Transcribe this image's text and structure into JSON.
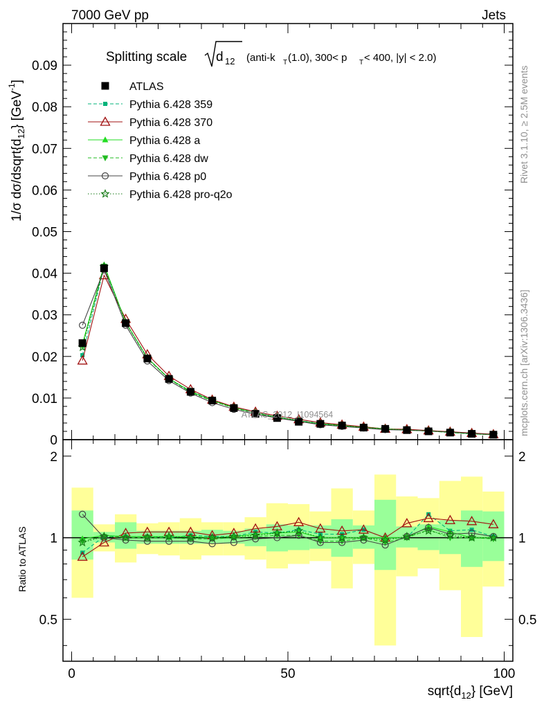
{
  "header": {
    "left": "7000 GeV pp",
    "right": "Jets"
  },
  "side_labels": {
    "rivet": "Rivet 3.1.10, ≥ 2.5M events",
    "mcplots": "mcplots.cern.ch [arXiv:1306.3436]"
  },
  "watermark": "ATLAS_2012_I1094564",
  "colors": {
    "ATLAS": "#000000",
    "p359": "#00b37a",
    "p370": "#a01010",
    "pa": "#22dd22",
    "pdw": "#22bb22",
    "pp0": "#444444",
    "pq2o": "#117711",
    "band_inner": "#99ff99",
    "band_outer": "#ffff99"
  },
  "chart_data": [
    {
      "type": "line",
      "title": "Splitting scale √d₁₂ (anti-kₜ(1.0), 300< pₜ < 400, |y| < 2.0)",
      "title_main": "Splitting scale",
      "title_sub": "(anti-k",
      "title_sub_T": "T",
      "title_sub_mid": "(1.0), 300< p",
      "title_sub_end": " < 400, |y| < 2.0)",
      "ylabel": "1/σ dσ/dsqrt{d12} [GeV⁻¹]",
      "ylabel_main": "1/σ dσ/dsqrt{d",
      "ylabel_sub": "12",
      "ylabel_end": "} [GeV",
      "ylabel_sup": "-1",
      "ylabel_close": "]",
      "xlim": [
        -2,
        102
      ],
      "ylim": [
        0,
        0.1
      ],
      "yticks": [
        "0",
        "0.01",
        "0.02",
        "0.03",
        "0.04",
        "0.05",
        "0.06",
        "0.07",
        "0.08",
        "0.09"
      ],
      "yticks_values": [
        0,
        0.01,
        0.02,
        0.03,
        0.04,
        0.05,
        0.06,
        0.07,
        0.08,
        0.09
      ],
      "x": [
        2.5,
        7.5,
        12.5,
        17.5,
        22.5,
        27.5,
        32.5,
        37.5,
        42.5,
        47.5,
        52.5,
        57.5,
        62.5,
        67.5,
        72.5,
        77.5,
        82.5,
        87.5,
        92.5,
        97.5
      ],
      "legend_placement": "top-left",
      "series": [
        {
          "name": "ATLAS",
          "key": "ATLAS",
          "marker": "square",
          "style": "none",
          "values": [
            0.0232,
            0.0412,
            0.028,
            0.0195,
            0.0146,
            0.0115,
            0.0094,
            0.0076,
            0.0062,
            0.0052,
            0.0043,
            0.0038,
            0.0034,
            0.0029,
            0.0026,
            0.0023,
            0.002,
            0.0017,
            0.0014,
            0.0012
          ]
        },
        {
          "name": "Pythia 6.428 359",
          "key": "p359",
          "marker": "smallsquare",
          "style": "dashed",
          "values": [
            0.0203,
            0.0415,
            0.0282,
            0.0197,
            0.0146,
            0.0117,
            0.0095,
            0.0077,
            0.0065,
            0.0054,
            0.0046,
            0.0039,
            0.0035,
            0.0031,
            0.0026,
            0.0023,
            0.0022,
            0.0018,
            0.0015,
            0.0012
          ]
        },
        {
          "name": "Pythia 6.428 370",
          "key": "p370",
          "marker": "opentriangle",
          "style": "solid",
          "values": [
            0.019,
            0.0395,
            0.029,
            0.0205,
            0.0153,
            0.0121,
            0.0096,
            0.0079,
            0.0067,
            0.0057,
            0.0049,
            0.0041,
            0.0036,
            0.0031,
            0.0026,
            0.0025,
            0.0022,
            0.0019,
            0.0016,
            0.0013
          ]
        },
        {
          "name": "Pythia 6.428 a",
          "key": "pa",
          "marker": "filledtriangle",
          "style": "solid",
          "values": [
            0.023,
            0.042,
            0.0282,
            0.0196,
            0.0147,
            0.0116,
            0.0094,
            0.0077,
            0.0064,
            0.0054,
            0.0045,
            0.0038,
            0.0034,
            0.0029,
            0.0026,
            0.0023,
            0.0021,
            0.0018,
            0.0014,
            0.0012
          ]
        },
        {
          "name": "Pythia 6.428 dw",
          "key": "pdw",
          "marker": "downtriangle",
          "style": "dashed",
          "values": [
            0.0225,
            0.0417,
            0.0281,
            0.0195,
            0.0146,
            0.0114,
            0.0093,
            0.0076,
            0.0063,
            0.0053,
            0.0044,
            0.0037,
            0.0033,
            0.0029,
            0.0025,
            0.0023,
            0.0021,
            0.0017,
            0.0014,
            0.0012
          ]
        },
        {
          "name": "Pythia 6.428 p0",
          "key": "pp0",
          "marker": "opencircle",
          "style": "solid",
          "values": [
            0.0275,
            0.0408,
            0.0275,
            0.0189,
            0.0142,
            0.0112,
            0.0089,
            0.0073,
            0.0061,
            0.0052,
            0.0044,
            0.0036,
            0.0032,
            0.0028,
            0.0024,
            0.0023,
            0.0021,
            0.0018,
            0.0015,
            0.0012
          ]
        },
        {
          "name": "Pythia 6.428 pro-q2o",
          "key": "pq2o",
          "marker": "star",
          "style": "dotted",
          "values": [
            0.0222,
            0.0416,
            0.0281,
            0.0196,
            0.0147,
            0.0115,
            0.0094,
            0.0077,
            0.0064,
            0.0054,
            0.0046,
            0.0038,
            0.0034,
            0.0029,
            0.0026,
            0.0023,
            0.0021,
            0.0018,
            0.0014,
            0.0012
          ]
        }
      ]
    },
    {
      "type": "line",
      "title": "",
      "ylabel": "Ratio to ATLAS",
      "xlabel": "sqrt{d12} [GeV]",
      "xlabel_main": "sqrt{d",
      "xlabel_sub": "12",
      "xlabel_end": "} [GeV]",
      "xlim": [
        -2,
        102
      ],
      "ylim": [
        0.35,
        2.3
      ],
      "xticks": [
        "0",
        "50",
        "100"
      ],
      "xticks_values": [
        0,
        50,
        100
      ],
      "yticks": [
        "0.5",
        "1",
        "2"
      ],
      "yticks_values": [
        0.5,
        1,
        2
      ],
      "x": [
        2.5,
        7.5,
        12.5,
        17.5,
        22.5,
        27.5,
        32.5,
        37.5,
        42.5,
        47.5,
        52.5,
        57.5,
        62.5,
        67.5,
        72.5,
        77.5,
        82.5,
        87.5,
        92.5,
        97.5
      ],
      "bands": {
        "inner_low": [
          0.83,
          0.96,
          0.91,
          0.95,
          0.95,
          0.95,
          0.95,
          0.95,
          0.93,
          0.89,
          0.9,
          0.91,
          0.85,
          0.91,
          0.76,
          0.92,
          0.9,
          0.87,
          0.78,
          0.82
        ],
        "inner_high": [
          1.26,
          1.05,
          1.14,
          1.06,
          1.06,
          1.06,
          1.07,
          1.06,
          1.08,
          1.12,
          1.11,
          1.11,
          1.17,
          1.11,
          1.38,
          1.1,
          1.12,
          1.16,
          1.26,
          1.25
        ],
        "outer_low": [
          0.6,
          0.89,
          0.81,
          0.87,
          0.86,
          0.83,
          0.86,
          0.86,
          0.83,
          0.77,
          0.8,
          0.82,
          0.65,
          0.8,
          0.4,
          0.72,
          0.77,
          0.64,
          0.43,
          0.66
        ],
        "outer_high": [
          1.53,
          1.12,
          1.22,
          1.13,
          1.14,
          1.18,
          1.14,
          1.14,
          1.19,
          1.34,
          1.33,
          1.25,
          1.52,
          1.26,
          1.71,
          1.42,
          1.4,
          1.62,
          1.68,
          1.48
        ]
      },
      "series": [
        {
          "name": "Pythia 6.428 359",
          "key": "p359",
          "marker": "smallsquare",
          "style": "dashed",
          "values": [
            0.88,
            1.01,
            1.01,
            1.01,
            1.0,
            1.02,
            1.01,
            1.01,
            1.05,
            1.04,
            1.07,
            1.03,
            1.03,
            1.07,
            1.0,
            1.0,
            1.22,
            1.06,
            1.07,
            1.01
          ]
        },
        {
          "name": "Pythia 6.428 370",
          "key": "p370",
          "marker": "opentriangle",
          "style": "solid",
          "values": [
            0.85,
            0.96,
            1.04,
            1.05,
            1.05,
            1.05,
            1.02,
            1.04,
            1.08,
            1.1,
            1.14,
            1.08,
            1.06,
            1.07,
            1.0,
            1.13,
            1.18,
            1.16,
            1.15,
            1.12
          ]
        },
        {
          "name": "Pythia 6.428 a",
          "key": "pa",
          "marker": "filledtriangle",
          "style": "solid",
          "values": [
            0.99,
            1.02,
            1.01,
            1.01,
            1.01,
            1.01,
            1.0,
            1.01,
            1.03,
            1.04,
            1.05,
            1.0,
            1.0,
            1.0,
            1.0,
            1.0,
            1.1,
            1.05,
            1.0,
            1.0
          ]
        },
        {
          "name": "Pythia 6.428 dw",
          "key": "pdw",
          "marker": "downtriangle",
          "style": "dashed",
          "values": [
            0.97,
            1.01,
            1.0,
            1.0,
            1.0,
            0.99,
            0.99,
            1.0,
            1.01,
            1.02,
            1.02,
            0.97,
            0.97,
            1.0,
            0.96,
            1.0,
            1.07,
            1.0,
            1.0,
            0.99
          ]
        },
        {
          "name": "Pythia 6.428 p0",
          "key": "pp0",
          "marker": "opencircle",
          "style": "solid",
          "values": [
            1.22,
            1.0,
            0.98,
            0.97,
            0.97,
            0.97,
            0.95,
            0.96,
            0.99,
            1.0,
            1.02,
            0.96,
            0.96,
            0.98,
            0.94,
            1.01,
            1.09,
            1.03,
            1.04,
            1.01
          ]
        },
        {
          "name": "Pythia 6.428 pro-q2o",
          "key": "pq2o",
          "marker": "star",
          "style": "dotted",
          "values": [
            0.96,
            1.01,
            1.0,
            1.0,
            1.01,
            1.0,
            1.0,
            1.01,
            1.02,
            1.04,
            1.06,
            1.0,
            1.0,
            1.0,
            0.98,
            1.01,
            1.06,
            1.02,
            1.0,
            1.0
          ]
        }
      ]
    }
  ]
}
